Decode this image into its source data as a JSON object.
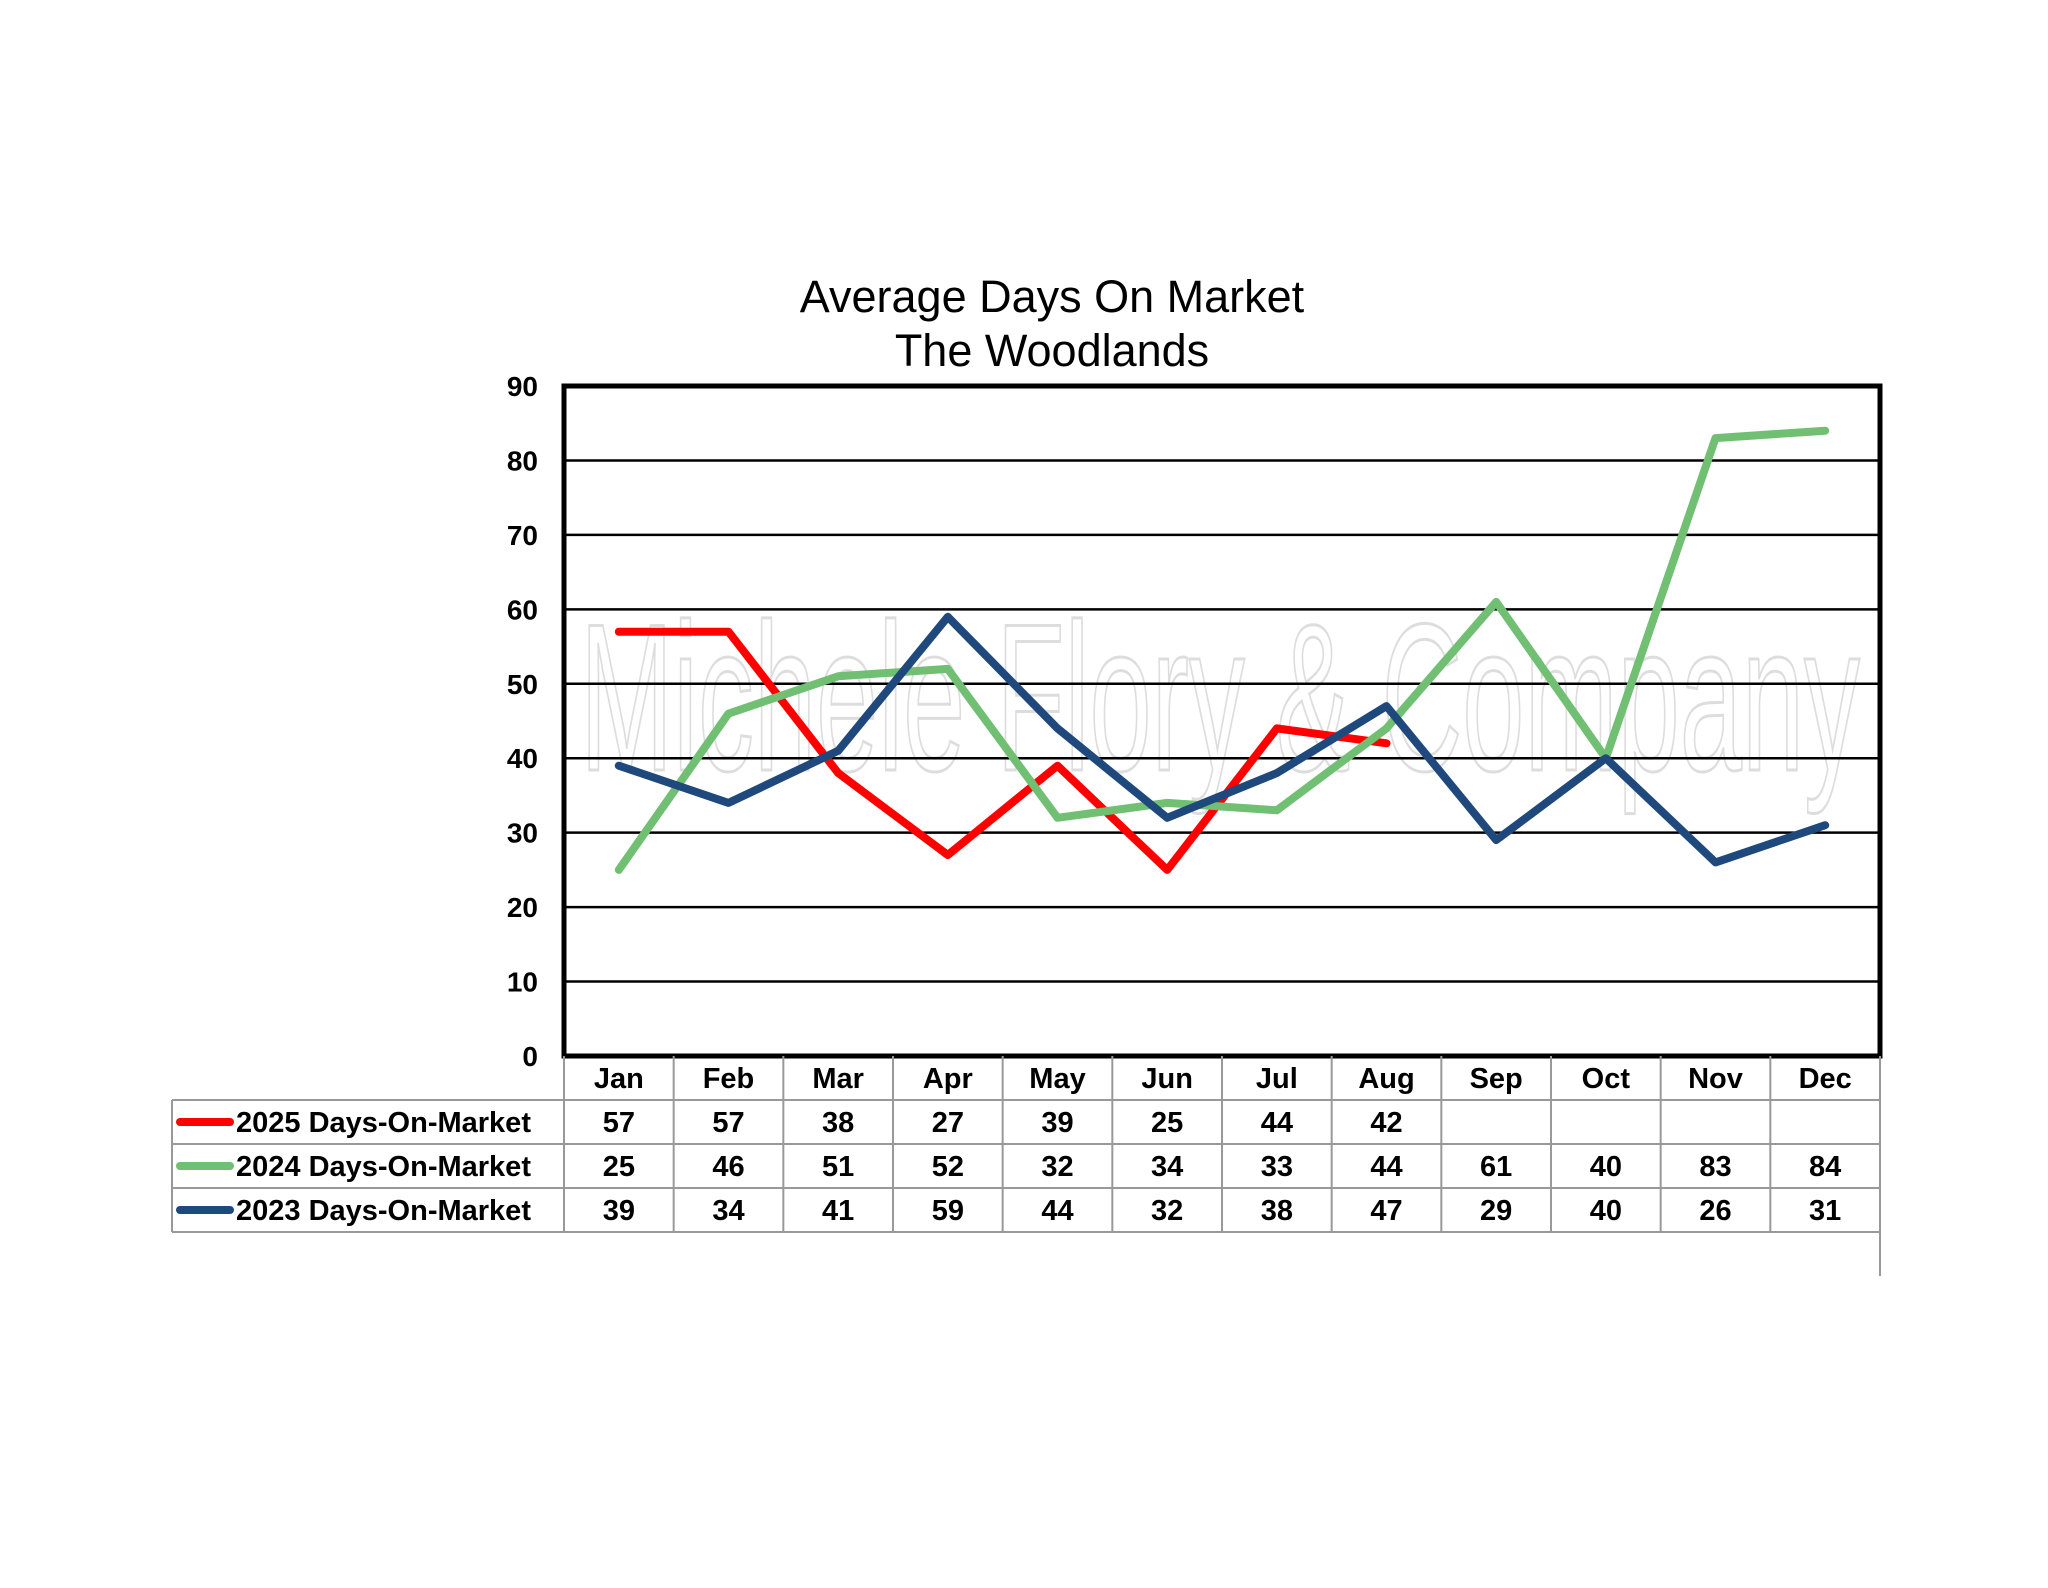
{
  "chart_data": {
    "type": "line",
    "title": "Average Days On Market",
    "subtitle": "The Woodlands",
    "categories": [
      "Jan",
      "Feb",
      "Mar",
      "Apr",
      "May",
      "Jun",
      "Jul",
      "Aug",
      "Sep",
      "Oct",
      "Nov",
      "Dec"
    ],
    "ylim": [
      0,
      90
    ],
    "yticks": [
      0,
      10,
      20,
      30,
      40,
      50,
      60,
      70,
      80,
      90
    ],
    "grid": true,
    "legend_position": "data-table-below",
    "series": [
      {
        "name": "2025 Days-On-Market",
        "color": "#ff0000",
        "values": [
          57,
          57,
          38,
          27,
          39,
          25,
          44,
          42,
          null,
          null,
          null,
          null
        ],
        "labels": [
          "57",
          "57",
          "38",
          "27",
          "39",
          "25",
          "44",
          "42",
          "",
          "",
          "",
          ""
        ]
      },
      {
        "name": "2024 Days-On-Market",
        "color": "#70bf73",
        "values": [
          25,
          46,
          51,
          52,
          32,
          34,
          33,
          44,
          61,
          40,
          83,
          84
        ],
        "labels": [
          "25",
          "46",
          "51",
          "52",
          "32",
          "34",
          "33",
          "44",
          "61",
          "40",
          "83",
          "84"
        ]
      },
      {
        "name": "2023 Days-On-Market",
        "color": "#1f497d",
        "values": [
          39,
          34,
          41,
          59,
          44,
          32,
          38,
          47,
          29,
          40,
          26,
          31
        ],
        "labels": [
          "39",
          "34",
          "41",
          "59",
          "44",
          "32",
          "38",
          "47",
          "29",
          "40",
          "26",
          "31"
        ]
      }
    ],
    "watermark": "Michele Flory & Company"
  }
}
